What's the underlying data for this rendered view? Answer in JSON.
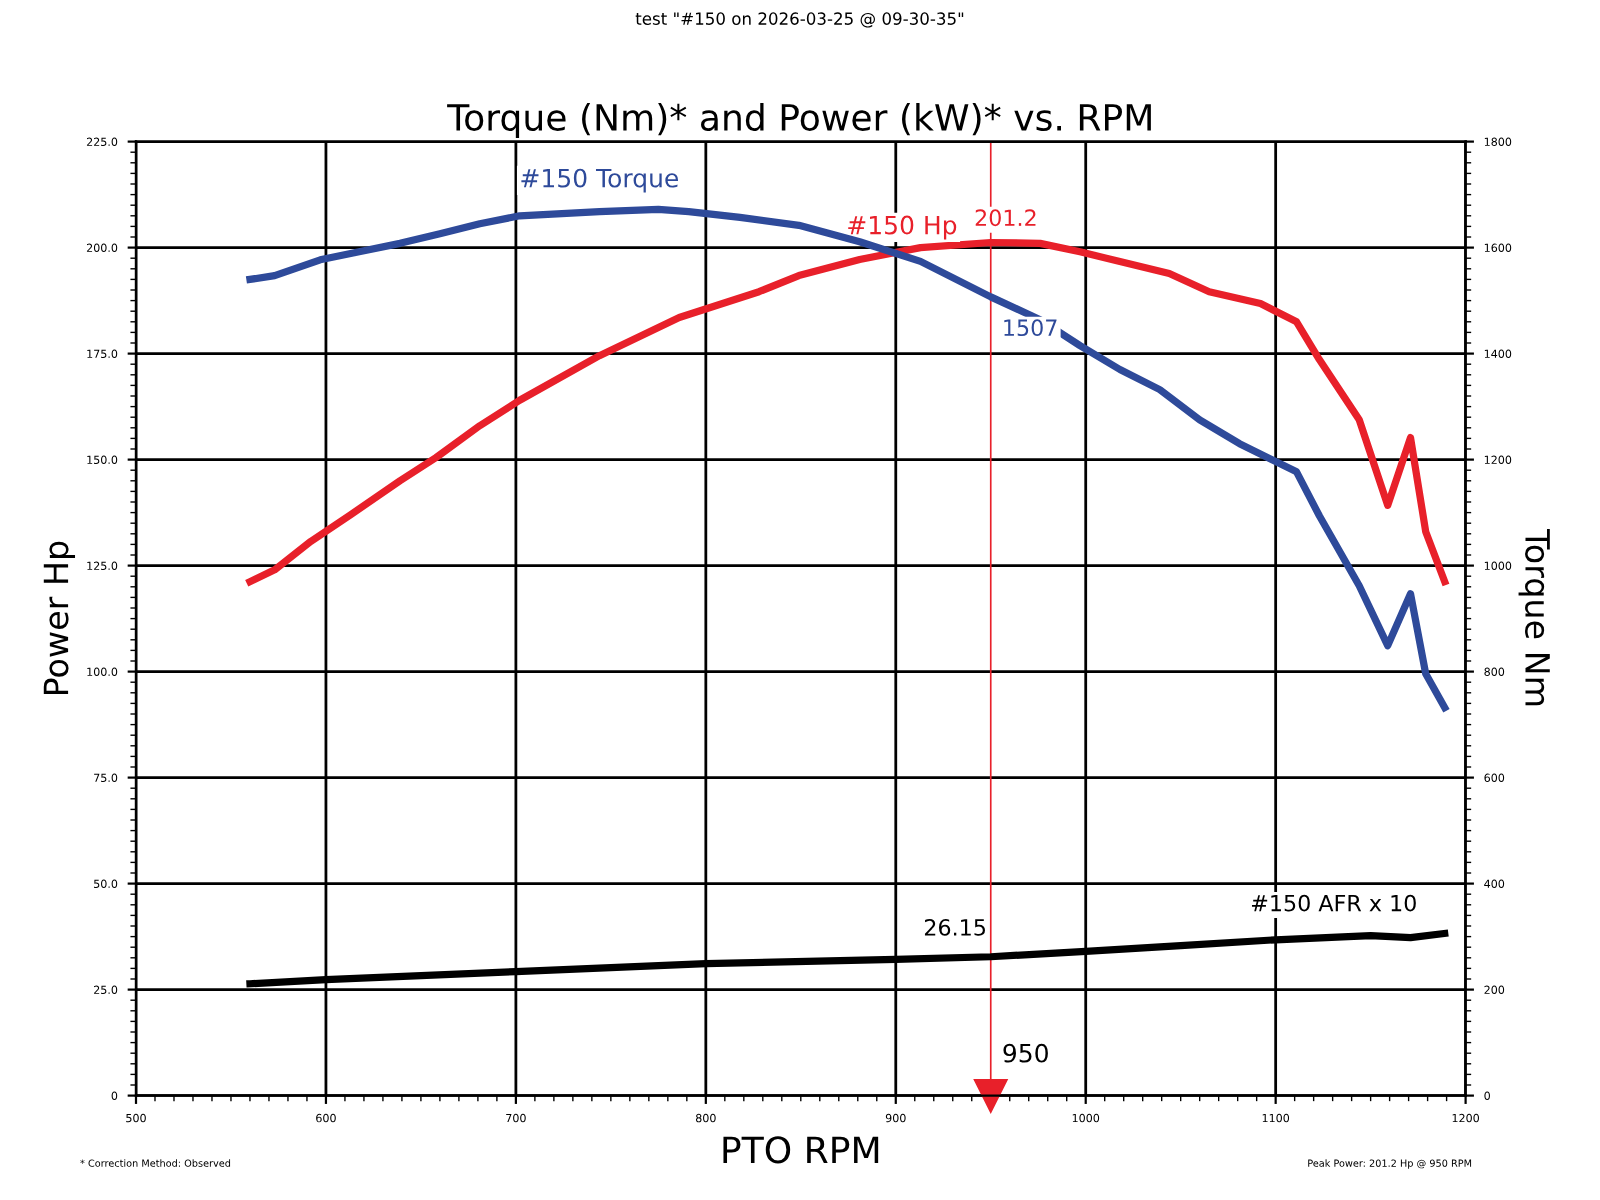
{
  "chart_data": {
    "type": "line",
    "title": "Torque (Nm)* and Power (kW)* vs. RPM",
    "xlabel": "PTO RPM",
    "ylabel": "Power Hp",
    "y2label": "Torque Nm",
    "annotations": [
      "test \"#150 on 2026-03-25 @ 09-30-35\"",
      "* Correction Method: Observed",
      "Peak Power: 201.2 Hp @ 950 RPM",
      "26.15"
    ],
    "xlim": [
      500,
      1200
    ],
    "xticks": [
      500,
      600,
      700,
      800,
      900,
      1000,
      1100,
      1200
    ],
    "ylim": [
      0,
      225
    ],
    "yticks": [
      0,
      {
        "value": 25,
        "label": "25.0"
      },
      {
        "value": 50,
        "label": "50.0"
      },
      {
        "value": 75,
        "label": "75.0"
      },
      {
        "value": 100,
        "label": "100.0"
      },
      {
        "value": 125,
        "label": "125.0"
      },
      {
        "value": 150,
        "label": "150.0"
      },
      {
        "value": 175,
        "label": "175.0"
      },
      {
        "value": 200,
        "label": "200.0"
      },
      {
        "value": 225,
        "label": "225.0"
      }
    ],
    "y2lim": [
      0,
      1800
    ],
    "y2ticks": [
      0,
      200,
      400,
      600,
      800,
      1000,
      1200,
      1400,
      1600,
      1800
    ],
    "grid": true,
    "legend": false,
    "line_style": "solid",
    "marker": "none",
    "ref_lines": [
      {
        "axis": "x",
        "value": 950,
        "label": "950",
        "color": "#e8202a"
      }
    ],
    "series": [
      {
        "name": "#150 Hp",
        "color": "#e8202a",
        "x": [
          560,
          573,
          592,
          613,
          639,
          658,
          681,
          702,
          744,
          786,
          828,
          849,
          881,
          913,
          950,
          976,
          997,
          1018,
          1044,
          1065,
          1092,
          1111,
          1123,
          1144,
          1159,
          1171,
          1179,
          1189
        ],
        "values": [
          121.2,
          124,
          130.7,
          137,
          145,
          150.5,
          158,
          164,
          174.5,
          183.5,
          189.6,
          193.4,
          197.2,
          200,
          201.2,
          201,
          199,
          196.7,
          193.9,
          189.6,
          186.8,
          182.5,
          173.6,
          159.4,
          139.2,
          155.2,
          133,
          121.2
        ],
        "value_labels": [
          null,
          null,
          null,
          null,
          null,
          null,
          null,
          null,
          null,
          null,
          null,
          null,
          null,
          null,
          "201.2",
          null,
          null,
          null,
          null,
          null,
          null,
          null,
          null,
          null,
          null,
          null,
          null,
          null
        ]
      },
      {
        "name": "#150 Torque",
        "color": "#2e4a9a",
        "axis": "y2",
        "x": [
          560,
          573,
          597,
          613,
          639,
          660,
          681,
          702,
          744,
          775,
          791,
          818,
          849,
          881,
          913,
          950,
          976,
          997,
          1018,
          1039,
          1060,
          1081,
          1111,
          1123,
          1144,
          1159,
          1171,
          1179,
          1189
        ],
        "values": [
          1540,
          1547,
          1577,
          1589,
          1608,
          1626,
          1645,
          1660,
          1668,
          1672,
          1668,
          1657,
          1642,
          1611,
          1574,
          1507,
          1464,
          1415,
          1370,
          1332,
          1275,
          1230,
          1177,
          1094,
          962,
          849,
          947,
          796,
          732
        ],
        "value_labels": [
          null,
          null,
          null,
          null,
          null,
          null,
          null,
          null,
          null,
          null,
          null,
          null,
          null,
          null,
          null,
          "1507",
          null,
          null,
          null,
          null,
          null,
          null,
          null,
          null,
          null,
          null,
          null,
          null,
          null
        ]
      },
      {
        "name": "#150 AFR x 10",
        "color": "#000000",
        "axis": "y2",
        "x": [
          560,
          600,
          700,
          800,
          900,
          950,
          1000,
          1050,
          1100,
          1150,
          1171,
          1189
        ],
        "values": [
          211,
          219,
          234,
          249,
          257,
          262,
          272,
          283,
          294,
          302,
          298,
          306
        ]
      }
    ]
  }
}
